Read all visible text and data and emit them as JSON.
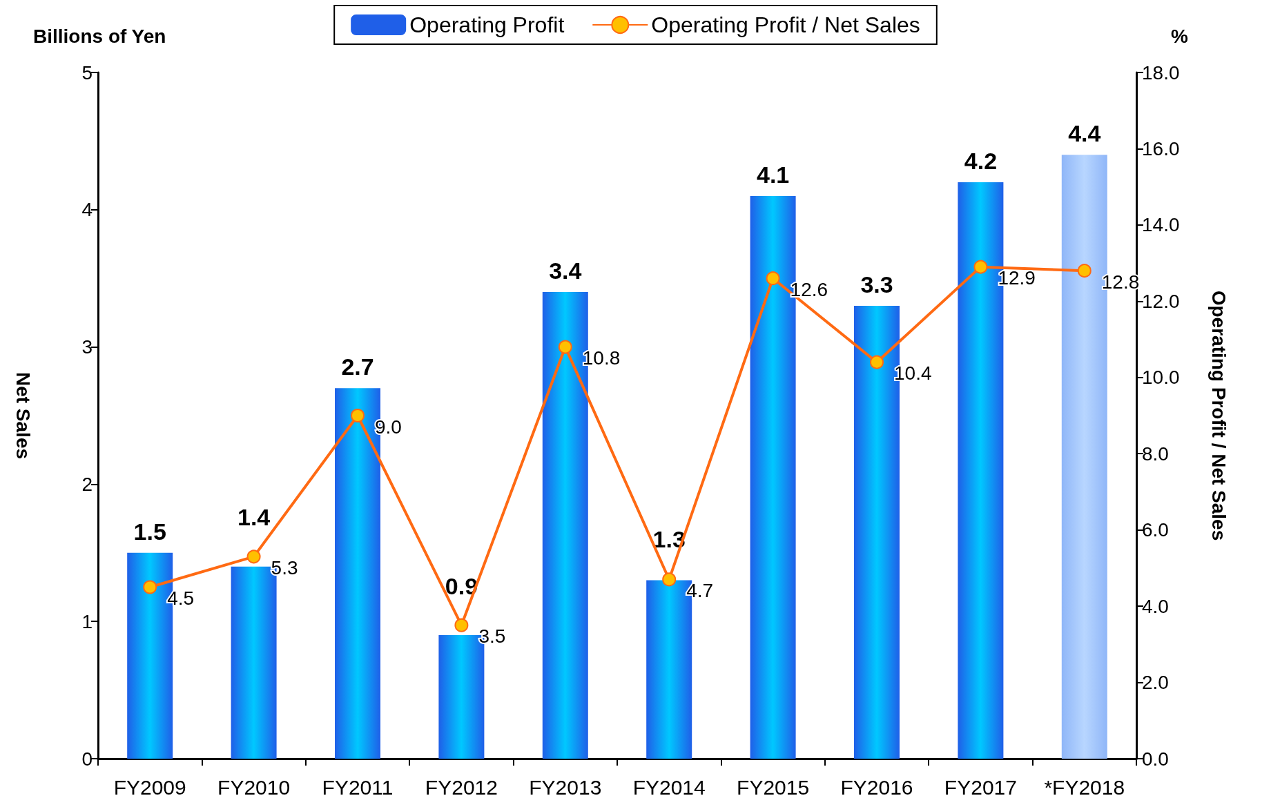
{
  "chart_data": {
    "type": "bar",
    "categories": [
      "FY2009",
      "FY2010",
      "FY2011",
      "FY2012",
      "FY2013",
      "FY2014",
      "FY2015",
      "FY2016",
      "FY2017",
      "*FY2018"
    ],
    "ylabel": "Net Sales",
    "y2label": "Operating Profit / Net Sales",
    "annotations": [
      "Billions of Yen",
      "%"
    ],
    "ylim": [
      0,
      5
    ],
    "yticks": [
      0,
      1,
      2,
      3,
      4,
      5
    ],
    "y2lim": [
      0,
      18
    ],
    "y2ticks": [
      {
        "value": 0,
        "label": "0.0"
      },
      {
        "value": 2,
        "label": "2.0"
      },
      {
        "value": 4,
        "label": "4.0"
      },
      {
        "value": 6,
        "label": "6.0"
      },
      {
        "value": 8,
        "label": "8.0"
      },
      {
        "value": 10,
        "label": "10.0"
      },
      {
        "value": 12,
        "label": "12.0"
      },
      {
        "value": 14,
        "label": "14.0"
      },
      {
        "value": 16,
        "label": "16.0"
      },
      {
        "value": 18,
        "label": "18.0"
      }
    ],
    "series": [
      {
        "name": "Operating Profit",
        "color": "#1f5fe8",
        "colors": [
          "#1f5fe8",
          "#1f5fe8",
          "#1f5fe8",
          "#1f5fe8",
          "#1f5fe8",
          "#1f5fe8",
          "#1f5fe8",
          "#1f5fe8",
          "#1f5fe8",
          "#8fb6f8"
        ],
        "values": [
          1.5,
          1.4,
          2.7,
          0.9,
          3.4,
          1.3,
          4.1,
          3.3,
          4.2,
          4.4
        ],
        "value_labels": [
          "1.5",
          "1.4",
          "2.7",
          "0.9",
          "3.4",
          "1.3",
          "4.1",
          "3.3",
          "4.2",
          "4.4"
        ]
      },
      {
        "name": "Operating Profit / Net Sales",
        "type": "line",
        "axis": "y2",
        "color": "#ff6a13",
        "marker": "circle",
        "line_style": "solid",
        "values": [
          4.5,
          5.3,
          9.0,
          3.5,
          10.8,
          4.7,
          12.6,
          10.4,
          12.9,
          12.8
        ],
        "value_labels": [
          "4.5",
          "5.3",
          "9.0",
          "3.5",
          "10.8",
          "4.7",
          "12.6",
          "10.4",
          "12.9",
          "12.8"
        ]
      }
    ],
    "grid": false,
    "legend": "top"
  }
}
